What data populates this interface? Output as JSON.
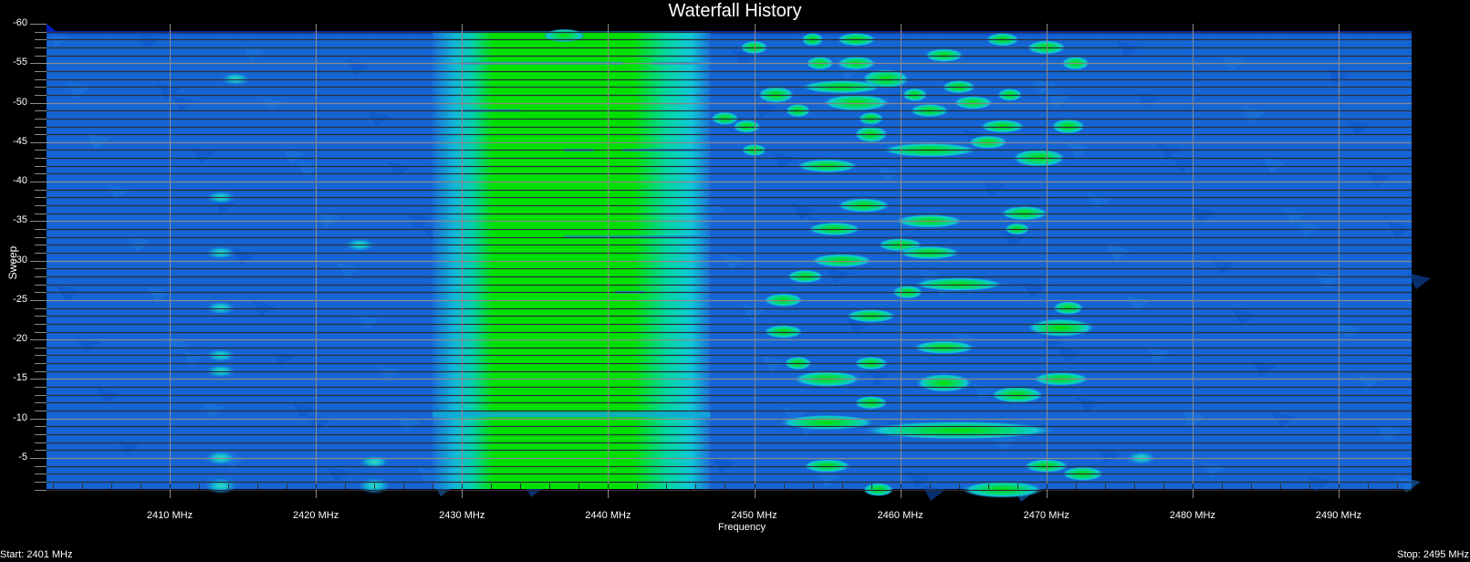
{
  "chart_data": {
    "type": "heatmap",
    "title": "Waterfall History",
    "xlabel": "Frequency",
    "ylabel": "Sweep",
    "x_unit": "MHz",
    "xlim": [
      2401,
      2495
    ],
    "ylim": [
      -60,
      0
    ],
    "x_ticks": [
      2410,
      2420,
      2430,
      2440,
      2450,
      2460,
      2470,
      2480,
      2490
    ],
    "x_tick_labels": [
      "2410 MHz",
      "2420 MHz",
      "2430 MHz",
      "2440 MHz",
      "2450 MHz",
      "2460 MHz",
      "2470 MHz",
      "2480 MHz",
      "2490 MHz"
    ],
    "y_ticks": [
      -60,
      -55,
      -50,
      -45,
      -40,
      -35,
      -30,
      -25,
      -20,
      -15,
      -10,
      -5
    ],
    "y_tick_labels": [
      "-60",
      "-55",
      "-50",
      "-45",
      "-40",
      "-35",
      "-30",
      "-25",
      "-20",
      "-15",
      "-10",
      "-5"
    ],
    "grid": true,
    "colormap": [
      "#0a3fd0",
      "#1a6fd8",
      "#10c8d0",
      "#00e000"
    ],
    "start_label": "Start: 2401 MHz",
    "stop_label": "Stop: 2495 MHz",
    "wide_band": {
      "f_start": 2428,
      "f_end": 2447,
      "core_start": 2430,
      "core_end": 2445,
      "sweep_from": -59,
      "sweep_to": 0,
      "gap_sweep": -10.5
    },
    "signals": [
      {
        "f": 2437,
        "sweep": -58.5,
        "w": 2.2,
        "h": 0.8
      },
      {
        "f": 2450,
        "sweep": -57,
        "w": 1.2,
        "h": 0.8
      },
      {
        "f": 2454,
        "sweep": -58,
        "w": 0.8,
        "h": 0.8
      },
      {
        "f": 2457,
        "sweep": -58,
        "w": 2,
        "h": 0.8
      },
      {
        "f": 2467,
        "sweep": -58,
        "w": 1.6,
        "h": 0.8
      },
      {
        "f": 2470,
        "sweep": -57,
        "w": 2,
        "h": 0.9
      },
      {
        "f": 2454.5,
        "sweep": -55,
        "w": 1.2,
        "h": 0.8
      },
      {
        "f": 2457,
        "sweep": -55,
        "w": 2,
        "h": 0.8
      },
      {
        "f": 2463,
        "sweep": -56,
        "w": 2,
        "h": 0.8
      },
      {
        "f": 2472,
        "sweep": -55,
        "w": 1.2,
        "h": 0.8
      },
      {
        "f": 2459,
        "sweep": -53,
        "w": 2.6,
        "h": 1.6
      },
      {
        "f": 2456,
        "sweep": -52,
        "w": 5,
        "h": 0.8
      },
      {
        "f": 2451.5,
        "sweep": -51,
        "w": 1.8,
        "h": 1.2
      },
      {
        "f": 2464,
        "sweep": -52,
        "w": 1.6,
        "h": 0.8
      },
      {
        "f": 2467.5,
        "sweep": -51,
        "w": 1,
        "h": 0.7
      },
      {
        "f": 2457,
        "sweep": -50,
        "w": 4,
        "h": 1.2
      },
      {
        "f": 2461,
        "sweep": -51,
        "w": 1,
        "h": 0.8
      },
      {
        "f": 2462,
        "sweep": -49,
        "w": 2,
        "h": 0.8
      },
      {
        "f": 2465,
        "sweep": -50,
        "w": 2,
        "h": 0.8
      },
      {
        "f": 2453,
        "sweep": -49,
        "w": 1,
        "h": 0.8
      },
      {
        "f": 2448,
        "sweep": -48,
        "w": 1.2,
        "h": 0.8
      },
      {
        "f": 2449.5,
        "sweep": -47,
        "w": 1.2,
        "h": 0.8
      },
      {
        "f": 2458,
        "sweep": -48,
        "w": 1,
        "h": 0.7
      },
      {
        "f": 2467,
        "sweep": -47,
        "w": 2.4,
        "h": 0.8
      },
      {
        "f": 2471.5,
        "sweep": -47,
        "w": 1.6,
        "h": 1
      },
      {
        "f": 2458,
        "sweep": -46,
        "w": 1.6,
        "h": 1.2
      },
      {
        "f": 2466,
        "sweep": -45,
        "w": 2,
        "h": 0.8
      },
      {
        "f": 2462,
        "sweep": -44,
        "w": 6,
        "h": 0.9
      },
      {
        "f": 2469.5,
        "sweep": -43,
        "w": 3,
        "h": 1.4
      },
      {
        "f": 2450,
        "sweep": -44,
        "w": 1,
        "h": 0.6
      },
      {
        "f": 2455,
        "sweep": -42,
        "w": 3.6,
        "h": 0.8
      },
      {
        "f": 2457.5,
        "sweep": -37,
        "w": 3,
        "h": 0.9
      },
      {
        "f": 2462,
        "sweep": -35,
        "w": 4,
        "h": 0.8
      },
      {
        "f": 2468.5,
        "sweep": -36,
        "w": 2.6,
        "h": 0.9
      },
      {
        "f": 2468,
        "sweep": -34,
        "w": 1,
        "h": 0.6
      },
      {
        "f": 2455.5,
        "sweep": -34,
        "w": 3,
        "h": 0.8
      },
      {
        "f": 2460,
        "sweep": -32,
        "w": 2.4,
        "h": 0.8
      },
      {
        "f": 2462,
        "sweep": -31,
        "w": 3.6,
        "h": 0.8
      },
      {
        "f": 2456,
        "sweep": -30,
        "w": 3.6,
        "h": 0.8
      },
      {
        "f": 2453.5,
        "sweep": -28,
        "w": 1.8,
        "h": 0.8
      },
      {
        "f": 2464,
        "sweep": -27,
        "w": 5.6,
        "h": 0.8
      },
      {
        "f": 2460.5,
        "sweep": -26,
        "w": 1.4,
        "h": 0.8
      },
      {
        "f": 2452,
        "sweep": -25,
        "w": 2,
        "h": 0.8
      },
      {
        "f": 2471.5,
        "sweep": -24,
        "w": 1.4,
        "h": 0.8
      },
      {
        "f": 2458,
        "sweep": -23,
        "w": 2.8,
        "h": 0.8
      },
      {
        "f": 2471,
        "sweep": -21.5,
        "w": 4,
        "h": 1.4
      },
      {
        "f": 2452,
        "sweep": -21,
        "w": 2,
        "h": 0.8
      },
      {
        "f": 2463,
        "sweep": -19,
        "w": 3.6,
        "h": 0.8
      },
      {
        "f": 2453,
        "sweep": -17,
        "w": 1.2,
        "h": 0.8
      },
      {
        "f": 2458,
        "sweep": -17,
        "w": 1.6,
        "h": 0.8
      },
      {
        "f": 2455,
        "sweep": -15,
        "w": 4,
        "h": 1.1
      },
      {
        "f": 2463,
        "sweep": -14.5,
        "w": 3.2,
        "h": 1.4
      },
      {
        "f": 2471,
        "sweep": -15,
        "w": 3.2,
        "h": 0.8
      },
      {
        "f": 2468,
        "sweep": -13,
        "w": 3,
        "h": 1.2
      },
      {
        "f": 2458,
        "sweep": -12,
        "w": 1.6,
        "h": 0.8
      },
      {
        "f": 2464,
        "sweep": -8.5,
        "w": 13,
        "h": 1.4
      },
      {
        "f": 2455,
        "sweep": -9.5,
        "w": 6,
        "h": 1
      },
      {
        "f": 2455,
        "sweep": -4,
        "w": 2.6,
        "h": 0.8
      },
      {
        "f": 2470,
        "sweep": -4,
        "w": 2.4,
        "h": 0.8
      },
      {
        "f": 2472.5,
        "sweep": -3,
        "w": 2.2,
        "h": 0.9
      },
      {
        "f": 2467,
        "sweep": -1,
        "w": 5,
        "h": 1.2
      },
      {
        "f": 2458.5,
        "sweep": -1,
        "w": 1.4,
        "h": 0.8
      },
      {
        "f": 2413.5,
        "sweep": -5,
        "w": 1.6,
        "h": 1,
        "weak": true
      },
      {
        "f": 2413.5,
        "sweep": -1.5,
        "w": 1.6,
        "h": 1.2,
        "weak": true
      },
      {
        "f": 2424,
        "sweep": -1.5,
        "w": 1.6,
        "h": 1.2,
        "weak": true
      },
      {
        "f": 2424,
        "sweep": -4.5,
        "w": 1.4,
        "h": 0.8,
        "weak": true
      },
      {
        "f": 2413.5,
        "sweep": -16,
        "w": 1.4,
        "h": 0.8,
        "weak": true
      },
      {
        "f": 2413.5,
        "sweep": -18,
        "w": 1.4,
        "h": 0.8,
        "weak": true
      },
      {
        "f": 2413.5,
        "sweep": -24,
        "w": 1.4,
        "h": 0.8,
        "weak": true
      },
      {
        "f": 2413.5,
        "sweep": -31,
        "w": 1.4,
        "h": 0.8,
        "weak": true
      },
      {
        "f": 2413.5,
        "sweep": -38,
        "w": 1.4,
        "h": 0.8,
        "weak": true
      },
      {
        "f": 2423,
        "sweep": -32,
        "w": 1.4,
        "h": 0.8,
        "weak": true
      },
      {
        "f": 2414.5,
        "sweep": -53,
        "w": 1.4,
        "h": 0.8,
        "weak": true
      },
      {
        "f": 2476.5,
        "sweep": -5,
        "w": 1.4,
        "h": 0.8,
        "weak": true
      }
    ]
  }
}
